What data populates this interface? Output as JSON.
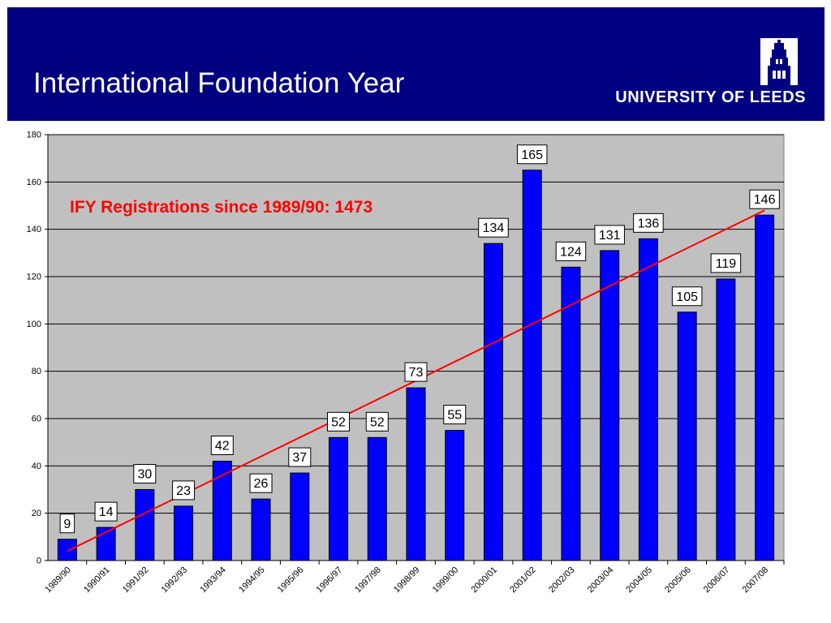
{
  "slide": {
    "title": "International Foundation Year",
    "logo_text": "UNIVERSITY OF LEEDS"
  },
  "colors": {
    "header_bg": "#000080",
    "plot_bg": "#c0c0c0",
    "bar": "#0000ff",
    "trendline": "#ff0000",
    "annotation": "#ff0000"
  },
  "chart_data": {
    "type": "bar",
    "title": "",
    "xlabel": "",
    "ylabel": "",
    "annotation": "IFY Registrations since 1989/90: 1473",
    "categories": [
      "1989/90",
      "1990/91",
      "1991/92",
      "1992/93",
      "1993/94",
      "1994/95",
      "1995/96",
      "1996/97",
      "1997/98",
      "1998/99",
      "1999/00",
      "2000/01",
      "2001/02",
      "2002/03",
      "2003/04",
      "2004/05",
      "2005/06",
      "2006/07",
      "2007/08"
    ],
    "values": [
      9,
      14,
      30,
      23,
      42,
      26,
      37,
      52,
      52,
      73,
      55,
      134,
      165,
      124,
      131,
      136,
      105,
      119,
      146
    ],
    "ylim": [
      0,
      180
    ],
    "yticks": [
      0,
      20,
      40,
      60,
      80,
      100,
      120,
      140,
      160,
      180
    ],
    "grid": true,
    "data_labels": true,
    "trendline": {
      "type": "linear",
      "start": 4,
      "end": 148
    }
  }
}
